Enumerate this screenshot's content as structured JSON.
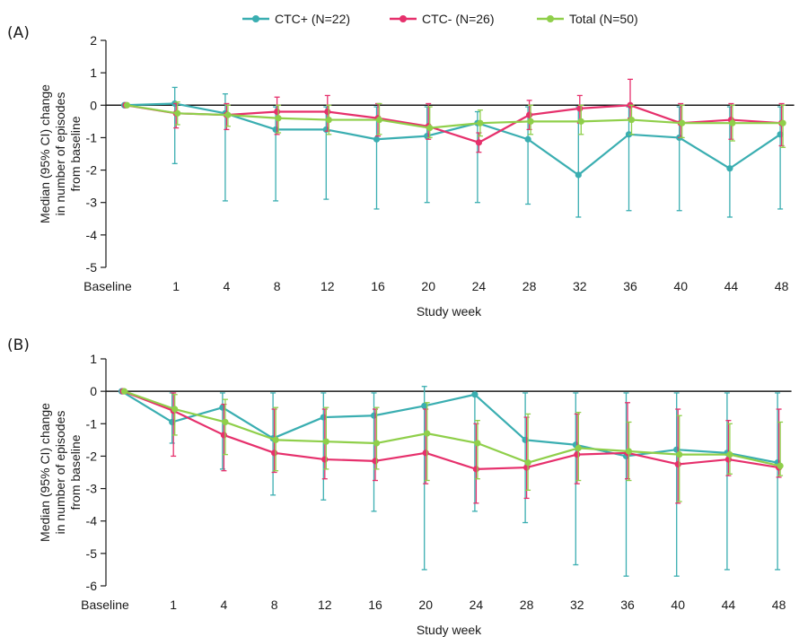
{
  "legend": [
    {
      "name": "CTC+ (N=22)",
      "color": "#3aaeb1"
    },
    {
      "name": "CTC- (N=26)",
      "color": "#e6306c"
    },
    {
      "name": "Total (N=50)",
      "color": "#8fcf4a"
    }
  ],
  "chart_data": [
    {
      "type": "line",
      "panel_label": "(A)",
      "xlabel": "Study week",
      "ylabel_lines": [
        "Median (95% CI) change",
        "in number of episodes",
        "from baseline"
      ],
      "categories": [
        "Baseline",
        "1",
        "4",
        "8",
        "12",
        "16",
        "20",
        "24",
        "28",
        "32",
        "36",
        "40",
        "44",
        "48"
      ],
      "ylim": [
        -5,
        2
      ],
      "yticks": [
        2,
        1,
        0,
        -1,
        -2,
        -3,
        -4,
        -5
      ],
      "series": [
        {
          "name": "CTC+ (N=22)",
          "values": [
            0,
            0.05,
            -0.25,
            -0.75,
            -0.75,
            -1.05,
            -0.95,
            -0.55,
            -1.05,
            -2.15,
            -0.9,
            -1.0,
            -1.95,
            -0.9
          ],
          "ci_low": [
            0,
            -1.8,
            -2.95,
            -2.95,
            -2.9,
            -3.2,
            -3.0,
            -3.0,
            -3.05,
            -3.45,
            -3.25,
            -3.25,
            -3.45,
            -3.2
          ],
          "ci_high": [
            0,
            0.55,
            0.35,
            -0.05,
            -0.05,
            -0.05,
            -0.05,
            -0.2,
            -0.05,
            -0.05,
            -0.05,
            -0.05,
            -0.05,
            -0.05
          ]
        },
        {
          "name": "CTC- (N=26)",
          "values": [
            0,
            -0.25,
            -0.3,
            -0.2,
            -0.2,
            -0.4,
            -0.65,
            -1.15,
            -0.3,
            -0.1,
            0.0,
            -0.55,
            -0.45,
            -0.55
          ],
          "ci_low": [
            0,
            -0.7,
            -0.75,
            -0.9,
            -0.8,
            -0.95,
            -1.05,
            -1.45,
            -0.75,
            -0.55,
            -0.4,
            -1.0,
            -1.05,
            -1.25
          ],
          "ci_high": [
            0,
            0.05,
            0.05,
            0.25,
            0.3,
            0.05,
            0.05,
            -0.85,
            0.15,
            0.3,
            0.8,
            0.05,
            0.05,
            0.05
          ]
        },
        {
          "name": "Total (N=50)",
          "values": [
            0,
            -0.25,
            -0.3,
            -0.4,
            -0.45,
            -0.45,
            -0.7,
            -0.55,
            -0.5,
            -0.5,
            -0.45,
            -0.55,
            -0.55,
            -0.55
          ],
          "ci_low": [
            0,
            -0.6,
            -0.65,
            -0.85,
            -0.9,
            -0.9,
            -1.0,
            -0.95,
            -0.9,
            -0.9,
            -0.9,
            -1.0,
            -1.1,
            -1.3
          ],
          "ci_high": [
            0,
            0.1,
            0.0,
            0.0,
            0.0,
            0.05,
            -0.05,
            -0.15,
            0.0,
            0.0,
            0.0,
            0.0,
            0.0,
            0.0
          ]
        }
      ]
    },
    {
      "type": "line",
      "panel_label": "(B)",
      "xlabel": "Study week",
      "ylabel_lines": [
        "Median (95% CI) change",
        "in number of episodes",
        "from baseline"
      ],
      "categories": [
        "Baseline",
        "1",
        "4",
        "8",
        "12",
        "16",
        "20",
        "24",
        "28",
        "32",
        "36",
        "40",
        "44",
        "48"
      ],
      "ylim": [
        -6,
        1
      ],
      "yticks": [
        1,
        0,
        -1,
        -2,
        -3,
        -4,
        -5,
        -6
      ],
      "series": [
        {
          "name": "CTC+ (N=22)",
          "values": [
            0,
            -0.95,
            -0.5,
            -1.45,
            -0.8,
            -0.75,
            -0.45,
            -0.1,
            -1.5,
            -1.65,
            -2.0,
            -1.8,
            -1.9,
            -2.2
          ],
          "ci_low": [
            0,
            -1.6,
            -2.4,
            -3.2,
            -3.35,
            -3.7,
            -5.5,
            -3.7,
            -4.05,
            -5.35,
            -5.7,
            -5.7,
            -5.5,
            -5.5
          ],
          "ci_high": [
            0,
            -0.05,
            -0.05,
            -0.05,
            -0.05,
            -0.05,
            0.15,
            -0.05,
            -0.05,
            -0.05,
            -0.05,
            -0.05,
            -0.05,
            -0.05
          ]
        },
        {
          "name": "CTC- (N=26)",
          "values": [
            0,
            -0.6,
            -1.35,
            -1.9,
            -2.1,
            -2.15,
            -1.9,
            -2.4,
            -2.35,
            -1.95,
            -1.9,
            -2.25,
            -2.1,
            -2.35
          ],
          "ci_low": [
            0,
            -2.0,
            -2.45,
            -2.5,
            -2.7,
            -2.75,
            -2.85,
            -3.45,
            -3.3,
            -2.85,
            -2.7,
            -3.45,
            -2.6,
            -2.65
          ],
          "ci_high": [
            0,
            -0.05,
            -0.4,
            -0.55,
            -0.55,
            -0.55,
            -0.55,
            -1.0,
            -0.8,
            -0.7,
            -0.35,
            -0.55,
            -0.9,
            -0.55
          ]
        },
        {
          "name": "Total (N=50)",
          "values": [
            0,
            -0.55,
            -0.95,
            -1.5,
            -1.55,
            -1.6,
            -1.3,
            -1.6,
            -2.2,
            -1.75,
            -1.85,
            -1.95,
            -1.95,
            -2.3
          ],
          "ci_low": [
            0,
            -1.35,
            -1.95,
            -2.45,
            -2.4,
            -2.4,
            -2.75,
            -2.7,
            -3.05,
            -2.75,
            -2.75,
            -3.4,
            -2.55,
            -2.6
          ],
          "ci_high": [
            0,
            -0.1,
            -0.25,
            -0.5,
            -0.5,
            -0.5,
            -0.35,
            -0.9,
            -0.7,
            -0.65,
            -0.95,
            -0.75,
            -1.0,
            -0.95
          ]
        }
      ]
    }
  ]
}
